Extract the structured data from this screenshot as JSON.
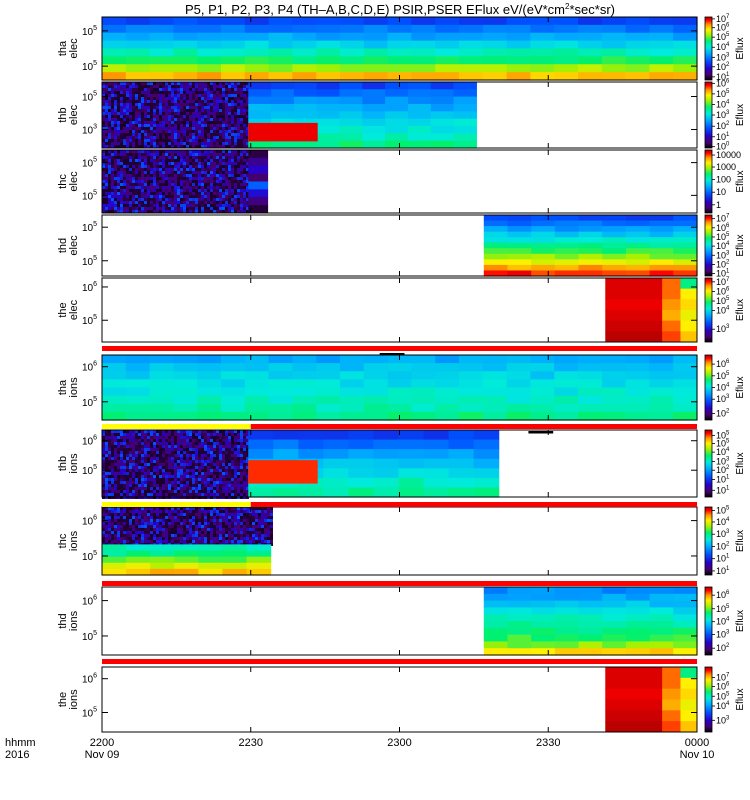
{
  "chart_data": {
    "type": "heatmap",
    "title": "P5, P1, P2, P3, P4 (TH-A,B,C,D,E) PSIR,PSER EFlux eV/(eV*cm2*sec*sr)",
    "title_parts": {
      "before_superscript": "P5, P1, P2, P3, P4 (TH–A,B,C,D,E) PSIR,PSER EFlux eV/(eV*cm",
      "superscript": "2",
      "after_superscript": "*sec*sr)"
    },
    "time_axis": {
      "label_line1": "hhmm",
      "label_line2": "2016",
      "range_minutes": [
        0,
        120
      ],
      "ticks": [
        {
          "t": 0,
          "line1": "2200",
          "line2": "Nov 09"
        },
        {
          "t": 30,
          "line1": "2230",
          "line2": ""
        },
        {
          "t": 60,
          "line1": "2300",
          "line2": ""
        },
        {
          "t": 90,
          "line1": "2330",
          "line2": ""
        },
        {
          "t": 120,
          "line1": "0000",
          "line2": "Nov 10"
        }
      ]
    },
    "colorbar_label": "Eflux",
    "panels": [
      {
        "probe": "tha",
        "species": "elec",
        "y_ticks": [
          {
            "label": "10",
            "exp": "5",
            "pos": 0.22
          },
          {
            "label": "10",
            "exp": "5",
            "pos": 0.78
          }
        ],
        "colorbar_ticks": [
          {
            "label": "10",
            "exp": "7",
            "pos": 0.97
          },
          {
            "label": "10",
            "exp": "6",
            "pos": 0.83
          },
          {
            "label": "10",
            "exp": "5",
            "pos": 0.68
          },
          {
            "label": "10",
            "exp": "4",
            "pos": 0.52
          },
          {
            "label": "10",
            "exp": "3",
            "pos": 0.36
          },
          {
            "label": "10",
            "exp": "2",
            "pos": 0.21
          },
          {
            "label": "10",
            "exp": "1",
            "pos": 0.05
          }
        ],
        "segments": [
          {
            "t_start": 0,
            "t_end": 120,
            "pattern": "gradient",
            "rows": [
              0.28,
              0.35,
              0.42,
              0.48,
              0.55,
              0.62,
              0.72,
              0.85
            ]
          }
        ]
      },
      {
        "probe": "thb",
        "species": "elec",
        "y_ticks": [
          {
            "label": "10",
            "exp": "5",
            "pos": 0.22
          },
          {
            "label": "10",
            "exp": "3",
            "pos": 0.72
          }
        ],
        "colorbar_ticks": [
          {
            "label": "10",
            "exp": "6",
            "pos": 0.98
          },
          {
            "label": "10",
            "exp": "5",
            "pos": 0.82
          },
          {
            "label": "10",
            "exp": "4",
            "pos": 0.66
          },
          {
            "label": "10",
            "exp": "3",
            "pos": 0.5
          },
          {
            "label": "10",
            "exp": "2",
            "pos": 0.33
          },
          {
            "label": "10",
            "exp": "1",
            "pos": 0.17
          },
          {
            "label": "10",
            "exp": "0",
            "pos": 0.02
          }
        ],
        "segments": [
          {
            "t_start": 0,
            "t_end": 29.5,
            "pattern": "noise"
          },
          {
            "t_start": 29.5,
            "t_end": 75.5,
            "pattern": "gradient",
            "rows": [
              0.28,
              0.33,
              0.38,
              0.42,
              0.46,
              0.5,
              0.52,
              0.55,
              0.6
            ]
          },
          {
            "t_start": 29.5,
            "t_end": 43.5,
            "pattern": "block",
            "y_from": 0.62,
            "y_to": 0.9,
            "value": 0.96
          }
        ]
      },
      {
        "probe": "thc",
        "species": "elec",
        "y_ticks": [
          {
            "label": "10",
            "exp": "5",
            "pos": 0.2
          },
          {
            "label": "10",
            "exp": "5",
            "pos": 0.72
          }
        ],
        "colorbar_ticks": [
          {
            "label": "10000",
            "exp": "",
            "pos": 0.92
          },
          {
            "label": "1000",
            "exp": "",
            "pos": 0.73
          },
          {
            "label": "100",
            "exp": "",
            "pos": 0.53
          },
          {
            "label": "10",
            "exp": "",
            "pos": 0.33
          },
          {
            "label": "1",
            "exp": "",
            "pos": 0.13
          }
        ],
        "segments": [
          {
            "t_start": 0,
            "t_end": 29.5,
            "pattern": "noise"
          },
          {
            "t_start": 29.5,
            "t_end": 33.5,
            "pattern": "column"
          }
        ]
      },
      {
        "probe": "thd",
        "species": "elec",
        "y_ticks": [
          {
            "label": "10",
            "exp": "5",
            "pos": 0.2
          },
          {
            "label": "10",
            "exp": "5",
            "pos": 0.75
          }
        ],
        "colorbar_ticks": [
          {
            "label": "10",
            "exp": "7",
            "pos": 0.94
          },
          {
            "label": "10",
            "exp": "6",
            "pos": 0.79
          },
          {
            "label": "10",
            "exp": "5",
            "pos": 0.64
          },
          {
            "label": "10",
            "exp": "4",
            "pos": 0.49
          },
          {
            "label": "10",
            "exp": "3",
            "pos": 0.34
          },
          {
            "label": "10",
            "exp": "2",
            "pos": 0.19
          },
          {
            "label": "10",
            "exp": "1",
            "pos": 0.04
          }
        ],
        "segments": [
          {
            "t_start": 77,
            "t_end": 120,
            "pattern": "gradient",
            "rows": [
              0.28,
              0.34,
              0.4,
              0.46,
              0.52,
              0.58,
              0.64,
              0.7,
              0.78,
              0.86,
              0.94
            ]
          }
        ]
      },
      {
        "probe": "the",
        "species": "elec",
        "y_ticks": [
          {
            "label": "10",
            "exp": "6",
            "pos": 0.14
          },
          {
            "label": "10",
            "exp": "5",
            "pos": 0.66
          }
        ],
        "colorbar_ticks": [
          {
            "label": "10",
            "exp": "7",
            "pos": 0.94
          },
          {
            "label": "10",
            "exp": "6",
            "pos": 0.79
          },
          {
            "label": "10",
            "exp": "5",
            "pos": 0.64
          },
          {
            "label": "10",
            "exp": "4",
            "pos": 0.49
          },
          {
            "label": "10",
            "exp": "3",
            "pos": 0.2
          }
        ],
        "segments": [
          {
            "t_start": 101.5,
            "t_end": 120,
            "pattern": "hot"
          }
        ]
      },
      {
        "probe": "tha",
        "species": "ions",
        "y_ticks": [
          {
            "label": "10",
            "exp": "6",
            "pos": 0.18
          },
          {
            "label": "10",
            "exp": "5",
            "pos": 0.72
          }
        ],
        "colorbar_ticks": [
          {
            "label": "10",
            "exp": "6",
            "pos": 0.86
          },
          {
            "label": "10",
            "exp": "5",
            "pos": 0.68
          },
          {
            "label": "10",
            "exp": "4",
            "pos": 0.5
          },
          {
            "label": "10",
            "exp": "3",
            "pos": 0.32
          },
          {
            "label": "10",
            "exp": "2",
            "pos": 0.1
          }
        ],
        "segments": [
          {
            "t_start": 0,
            "t_end": 120,
            "pattern": "gradient",
            "rows": [
              0.42,
              0.46,
              0.48,
              0.5,
              0.52,
              0.54,
              0.56,
              0.6
            ]
          }
        ]
      },
      {
        "probe": "thb",
        "species": "ions",
        "y_ticks": [
          {
            "label": "10",
            "exp": "6",
            "pos": 0.16
          },
          {
            "label": "10",
            "exp": "5",
            "pos": 0.6
          }
        ],
        "colorbar_ticks": [
          {
            "label": "10",
            "exp": "5",
            "pos": 0.92
          },
          {
            "label": "10",
            "exp": "5",
            "pos": 0.8
          },
          {
            "label": "10",
            "exp": "4",
            "pos": 0.67
          },
          {
            "label": "10",
            "exp": "3",
            "pos": 0.53
          },
          {
            "label": "10",
            "exp": "2",
            "pos": 0.4
          },
          {
            "label": "10",
            "exp": "1",
            "pos": 0.26
          },
          {
            "label": "10",
            "exp": "1",
            "pos": 0.1
          }
        ],
        "segments": [
          {
            "t_start": 0,
            "t_end": 29.5,
            "pattern": "noise"
          },
          {
            "t_start": 29.5,
            "t_end": 80,
            "pattern": "gradient",
            "rows": [
              0.28,
              0.34,
              0.4,
              0.45,
              0.5,
              0.55,
              0.58
            ]
          },
          {
            "t_start": 29.5,
            "t_end": 43.5,
            "pattern": "block",
            "y_from": 0.45,
            "y_to": 0.8,
            "value": 0.93
          }
        ]
      },
      {
        "probe": "thc",
        "species": "ions",
        "y_ticks": [
          {
            "label": "10",
            "exp": "6",
            "pos": 0.2
          },
          {
            "label": "10",
            "exp": "5",
            "pos": 0.72
          }
        ],
        "colorbar_ticks": [
          {
            "label": "10",
            "exp": "5",
            "pos": 0.95
          },
          {
            "label": "10",
            "exp": "4",
            "pos": 0.78
          },
          {
            "label": "10",
            "exp": "3",
            "pos": 0.6
          },
          {
            "label": "10",
            "exp": "2",
            "pos": 0.42
          },
          {
            "label": "10",
            "exp": "1",
            "pos": 0.24
          },
          {
            "label": "10",
            "exp": "1",
            "pos": 0.06
          }
        ],
        "segments": [
          {
            "t_start": 0,
            "t_end": 34,
            "pattern": "noise",
            "y_to": 0.55
          },
          {
            "t_start": 0,
            "t_end": 34,
            "pattern": "gradient",
            "y_from": 0.55,
            "rows": [
              0.55,
              0.6,
              0.68,
              0.76,
              0.84
            ]
          }
        ]
      },
      {
        "probe": "thd",
        "species": "ions",
        "y_ticks": [
          {
            "label": "10",
            "exp": "6",
            "pos": 0.2
          },
          {
            "label": "10",
            "exp": "5",
            "pos": 0.72
          }
        ],
        "colorbar_ticks": [
          {
            "label": "10",
            "exp": "6",
            "pos": 0.88
          },
          {
            "label": "10",
            "exp": "5",
            "pos": 0.68
          },
          {
            "label": "10",
            "exp": "4",
            "pos": 0.49
          },
          {
            "label": "10",
            "exp": "3",
            "pos": 0.3
          },
          {
            "label": "10",
            "exp": "2",
            "pos": 0.1
          }
        ],
        "segments": [
          {
            "t_start": 77,
            "t_end": 120,
            "pattern": "gradient",
            "rows": [
              0.38,
              0.42,
              0.46,
              0.5,
              0.54,
              0.57,
              0.6,
              0.64,
              0.7,
              0.82
            ]
          }
        ]
      },
      {
        "probe": "the",
        "species": "ions",
        "y_ticks": [
          {
            "label": "10",
            "exp": "6",
            "pos": 0.18
          },
          {
            "label": "10",
            "exp": "5",
            "pos": 0.7
          }
        ],
        "colorbar_ticks": [
          {
            "label": "10",
            "exp": "7",
            "pos": 0.84
          },
          {
            "label": "10",
            "exp": "6",
            "pos": 0.7
          },
          {
            "label": "10",
            "exp": "5",
            "pos": 0.55
          },
          {
            "label": "10",
            "exp": "4",
            "pos": 0.4
          },
          {
            "label": "10",
            "exp": "3",
            "pos": 0.18
          }
        ],
        "segments": [
          {
            "t_start": 101.5,
            "t_end": 120,
            "pattern": "hot"
          }
        ]
      }
    ],
    "status_bars": [
      {
        "after_panel": 4,
        "segments": [
          {
            "t_start": 0,
            "t_end": 120,
            "color": "#ff0000"
          }
        ],
        "marks": [
          {
            "t_start": 56,
            "t_end": 61
          }
        ]
      },
      {
        "after_panel": 5,
        "segments": [
          {
            "t_start": 0,
            "t_end": 30,
            "color": "#ffff00"
          },
          {
            "t_start": 30,
            "t_end": 120,
            "color": "#ff0000"
          }
        ],
        "marks": [
          {
            "t_start": 86,
            "t_end": 91
          }
        ]
      },
      {
        "after_panel": 6,
        "segments": [
          {
            "t_start": 0,
            "t_end": 30,
            "color": "#ffff00"
          },
          {
            "t_start": 30,
            "t_end": 120,
            "color": "#ff0000"
          }
        ],
        "marks": []
      },
      {
        "after_panel": 7,
        "segments": [
          {
            "t_start": 0,
            "t_end": 120,
            "color": "#ff0000"
          }
        ],
        "marks": []
      },
      {
        "after_panel": 8,
        "segments": [
          {
            "t_start": 0,
            "t_end": 120,
            "color": "#ff0000"
          }
        ],
        "marks": []
      }
    ]
  }
}
